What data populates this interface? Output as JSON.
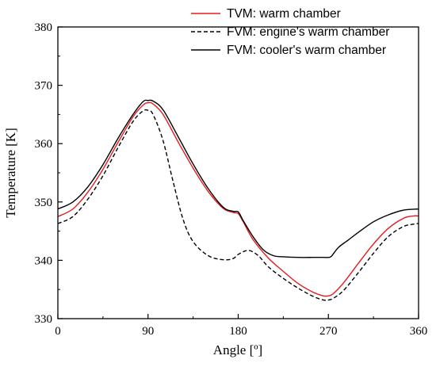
{
  "chart_data": {
    "type": "line",
    "xlabel": "Angle [º]",
    "ylabel": "Temperature [K]",
    "xlim": [
      0,
      360
    ],
    "ylim": [
      330,
      380
    ],
    "xticks": [
      0,
      90,
      180,
      270,
      360
    ],
    "yticks": [
      330,
      340,
      350,
      360,
      370,
      380
    ],
    "grid": false,
    "legend_position": "top-right",
    "series": [
      {
        "name": "TVM: warm chamber",
        "color": "#e8191c",
        "style": "solid",
        "x": [
          0,
          15,
          30,
          45,
          60,
          75,
          85,
          90,
          95,
          105,
          120,
          135,
          150,
          165,
          175,
          180,
          185,
          195,
          210,
          225,
          240,
          255,
          265,
          270,
          275,
          285,
          300,
          315,
          330,
          345,
          355,
          360
        ],
        "y": [
          347.5,
          348.8,
          351.7,
          355.6,
          360.2,
          364.6,
          366.6,
          367.0,
          366.8,
          365.0,
          360.3,
          355.8,
          351.8,
          348.9,
          348.2,
          348.0,
          346.6,
          343.5,
          340.4,
          338.1,
          336.0,
          334.5,
          333.9,
          333.9,
          334.3,
          336.1,
          339.5,
          342.8,
          345.5,
          347.2,
          347.6,
          347.6
        ]
      },
      {
        "name": "FVM: engine's warm chamber",
        "color": "#000000",
        "style": "dashed",
        "x": [
          0,
          15,
          30,
          45,
          60,
          75,
          85,
          90,
          95,
          105,
          115,
          125,
          135,
          150,
          165,
          175,
          180,
          190,
          200,
          210,
          225,
          240,
          255,
          265,
          270,
          275,
          285,
          300,
          315,
          330,
          345,
          355,
          360
        ],
        "y": [
          346.3,
          347.5,
          350.5,
          354.5,
          359.3,
          363.8,
          365.6,
          365.7,
          365.0,
          360.5,
          353.5,
          347.0,
          343.2,
          340.8,
          340.1,
          340.3,
          341.0,
          341.7,
          340.8,
          338.9,
          336.9,
          335.2,
          333.8,
          333.2,
          333.2,
          333.5,
          334.8,
          337.9,
          341.2,
          344.1,
          345.8,
          346.2,
          346.3
        ]
      },
      {
        "name": "FVM: cooler's warm chamber",
        "color": "#000000",
        "style": "solid",
        "x": [
          0,
          15,
          30,
          45,
          60,
          75,
          85,
          90,
          95,
          105,
          120,
          135,
          150,
          165,
          175,
          180,
          185,
          195,
          205,
          215,
          225,
          240,
          255,
          265,
          270,
          273,
          280,
          290,
          300,
          315,
          330,
          345,
          360
        ],
        "y": [
          348.8,
          350.0,
          352.6,
          356.4,
          360.9,
          365.0,
          367.2,
          367.4,
          367.3,
          365.8,
          361.2,
          356.5,
          352.3,
          349.1,
          348.4,
          348.3,
          346.8,
          344.0,
          341.8,
          340.8,
          340.6,
          340.5,
          340.5,
          340.5,
          340.5,
          340.7,
          342.2,
          343.5,
          344.8,
          346.6,
          347.8,
          348.6,
          348.8
        ]
      }
    ]
  }
}
